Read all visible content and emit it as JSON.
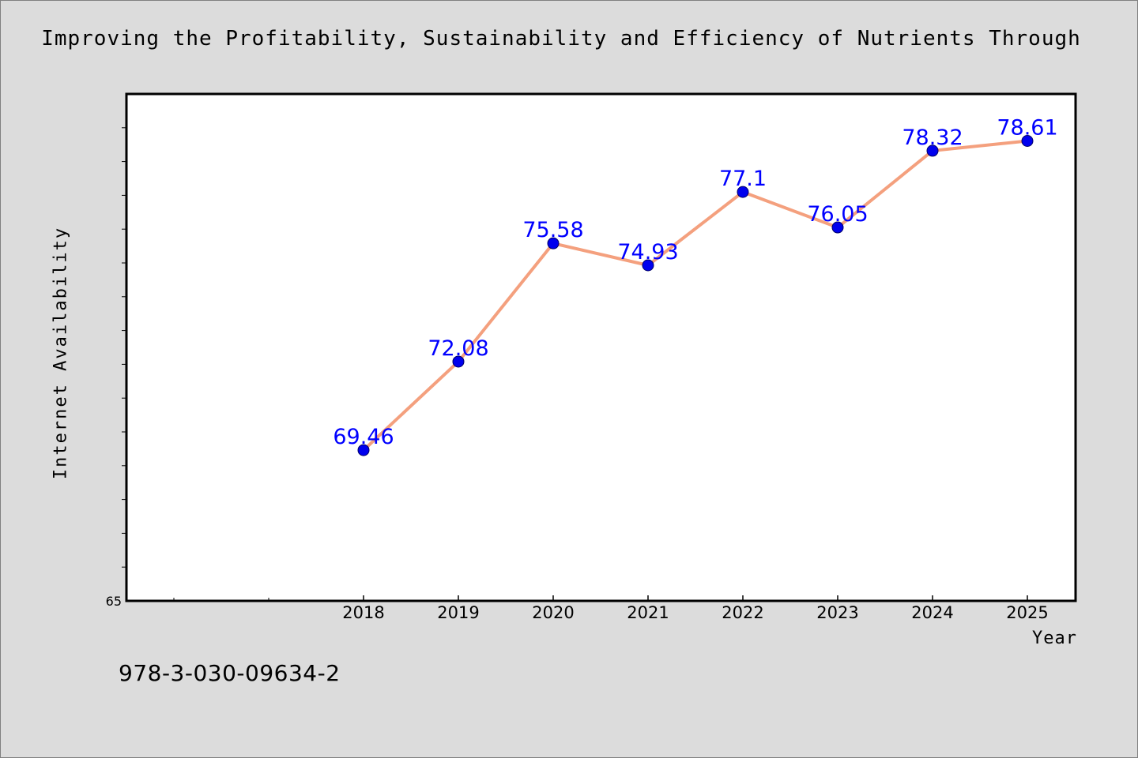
{
  "page": {
    "title": "Improving the Profitability, Sustainability and Efficiency of Nutrients Through",
    "footer_code": "978-3-030-09634-2"
  },
  "chart_data": {
    "type": "line",
    "title": "Improving the Profitability, Sustainability and Efficiency of Nutrients Through",
    "xlabel": "Year",
    "ylabel": "Internet Availability",
    "x": [
      "2018",
      "2019",
      "2020",
      "2021",
      "2022",
      "2023",
      "2024",
      "2025"
    ],
    "series": [
      {
        "name": "",
        "values": [
          69.46,
          72.08,
          75.58,
          74.93,
          77.1,
          76.05,
          78.32,
          78.61
        ],
        "labels": [
          "69.46",
          "72.08",
          "75.58",
          "74.93",
          "77.1",
          "76.05",
          "78.32",
          "78.61"
        ]
      }
    ],
    "ylim": [
      65,
      80
    ],
    "y_tick_labels": [
      "65"
    ],
    "grid": false,
    "colors": {
      "line": "#f4a07e",
      "marker": "#0000ee",
      "data_label": "#0000ff"
    }
  }
}
